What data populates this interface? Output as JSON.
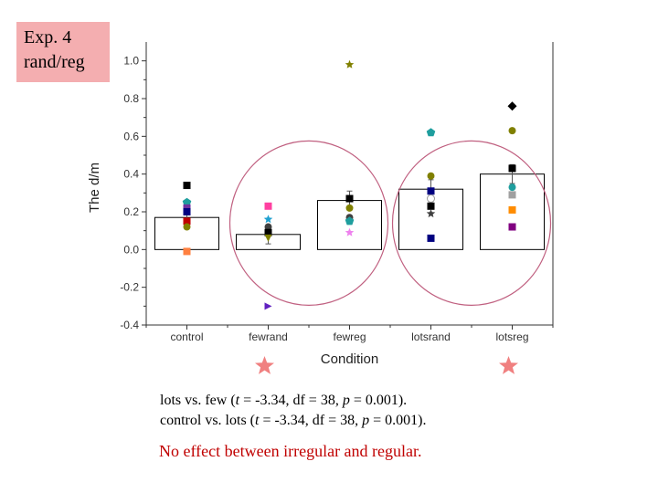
{
  "label_box": {
    "line1": "Exp. 4",
    "line2": "rand/reg"
  },
  "stats": {
    "line1": {
      "pre": "lots vs. few (",
      "t_sym": "t",
      "mid": " = -3.34, df = 38, ",
      "p_sym": "p",
      "post": " = 0.001)."
    },
    "line2": {
      "pre": "control vs. lots (",
      "t_sym": "t",
      "mid": " = -3.34, df = 38, ",
      "p_sym": "p",
      "post": " = 0.001)."
    }
  },
  "note": "No effect between irregular and regular.",
  "colors": {
    "label_bg": "#f4aeb0",
    "circle": "#c06080",
    "star": "#f08080",
    "note": "#c00000"
  },
  "chart_data": {
    "type": "bar",
    "categories": [
      "control",
      "fewrand",
      "fewreg",
      "lotsrand",
      "lotsreg"
    ],
    "values": [
      0.17,
      0.08,
      0.26,
      0.32,
      0.4
    ],
    "xlabel": "Condition",
    "ylabel": "The d/m",
    "ylim": [
      -0.4,
      1.1
    ],
    "yticks": [
      -0.4,
      -0.2,
      0.0,
      0.2,
      0.4,
      0.6,
      0.8,
      1.0
    ],
    "ytick_labels": [
      "-0.4",
      "-0.2",
      "0.0",
      "0.2",
      "0.4",
      "0.6",
      "0.8",
      "1.0"
    ],
    "error_bars": [
      0.05,
      0.05,
      0.05,
      0.05,
      0.05
    ],
    "highlighted_categories": [
      "fewrand",
      "fewreg",
      "lotsrand",
      "lotsreg"
    ],
    "starred_categories": [
      "fewrand",
      "lotsreg"
    ],
    "points": [
      {
        "category": "control",
        "y": 0.34,
        "color": "#000000",
        "shape": "square"
      },
      {
        "category": "control",
        "y": 0.25,
        "color": "#1f9e9e",
        "shape": "pentagon"
      },
      {
        "category": "control",
        "y": 0.22,
        "color": "#7030a0",
        "shape": "square"
      },
      {
        "category": "control",
        "y": 0.2,
        "color": "#000080",
        "shape": "square"
      },
      {
        "category": "control",
        "y": 0.15,
        "color": "#c00000",
        "shape": "square"
      },
      {
        "category": "control",
        "y": 0.12,
        "color": "#808000",
        "shape": "circle"
      },
      {
        "category": "control",
        "y": -0.01,
        "color": "#ff8040",
        "shape": "square"
      },
      {
        "category": "fewrand",
        "y": 0.23,
        "color": "#ff40a0",
        "shape": "square"
      },
      {
        "category": "fewrand",
        "y": 0.16,
        "color": "#1fa0d0",
        "shape": "star"
      },
      {
        "category": "fewrand",
        "y": 0.12,
        "color": "#404040",
        "shape": "circle"
      },
      {
        "category": "fewrand",
        "y": 0.09,
        "color": "#000000",
        "shape": "square"
      },
      {
        "category": "fewrand",
        "y": 0.06,
        "color": "#808000",
        "shape": "triangle-down"
      },
      {
        "category": "fewrand",
        "y": -0.3,
        "color": "#6020c0",
        "shape": "triangle-right"
      },
      {
        "category": "fewreg",
        "y": 0.98,
        "color": "#808000",
        "shape": "star"
      },
      {
        "category": "fewreg",
        "y": 0.27,
        "color": "#000000",
        "shape": "square"
      },
      {
        "category": "fewreg",
        "y": 0.22,
        "color": "#808000",
        "shape": "circle"
      },
      {
        "category": "fewreg",
        "y": 0.17,
        "color": "#404040",
        "shape": "circle"
      },
      {
        "category": "fewreg",
        "y": 0.15,
        "color": "#1f9e9e",
        "shape": "pentagon"
      },
      {
        "category": "fewreg",
        "y": 0.09,
        "color": "#ee82ee",
        "shape": "star"
      },
      {
        "category": "lotsrand",
        "y": 0.62,
        "color": "#1f9e9e",
        "shape": "pentagon"
      },
      {
        "category": "lotsrand",
        "y": 0.39,
        "color": "#808000",
        "shape": "circle"
      },
      {
        "category": "lotsrand",
        "y": 0.31,
        "color": "#000080",
        "shape": "square"
      },
      {
        "category": "lotsrand",
        "y": 0.27,
        "color": "#ffffff",
        "shape": "circle"
      },
      {
        "category": "lotsrand",
        "y": 0.23,
        "color": "#000000",
        "shape": "square"
      },
      {
        "category": "lotsrand",
        "y": 0.19,
        "color": "#404040",
        "shape": "star"
      },
      {
        "category": "lotsrand",
        "y": 0.06,
        "color": "#000080",
        "shape": "square"
      },
      {
        "category": "lotsreg",
        "y": 0.76,
        "color": "#000000",
        "shape": "diamond"
      },
      {
        "category": "lotsreg",
        "y": 0.63,
        "color": "#808000",
        "shape": "circle"
      },
      {
        "category": "lotsreg",
        "y": 0.43,
        "color": "#000000",
        "shape": "square"
      },
      {
        "category": "lotsreg",
        "y": 0.33,
        "color": "#1f9e9e",
        "shape": "circle"
      },
      {
        "category": "lotsreg",
        "y": 0.29,
        "color": "#a0a0a0",
        "shape": "square"
      },
      {
        "category": "lotsreg",
        "y": 0.21,
        "color": "#ff8c00",
        "shape": "square"
      },
      {
        "category": "lotsreg",
        "y": 0.12,
        "color": "#800080",
        "shape": "square"
      }
    ]
  }
}
